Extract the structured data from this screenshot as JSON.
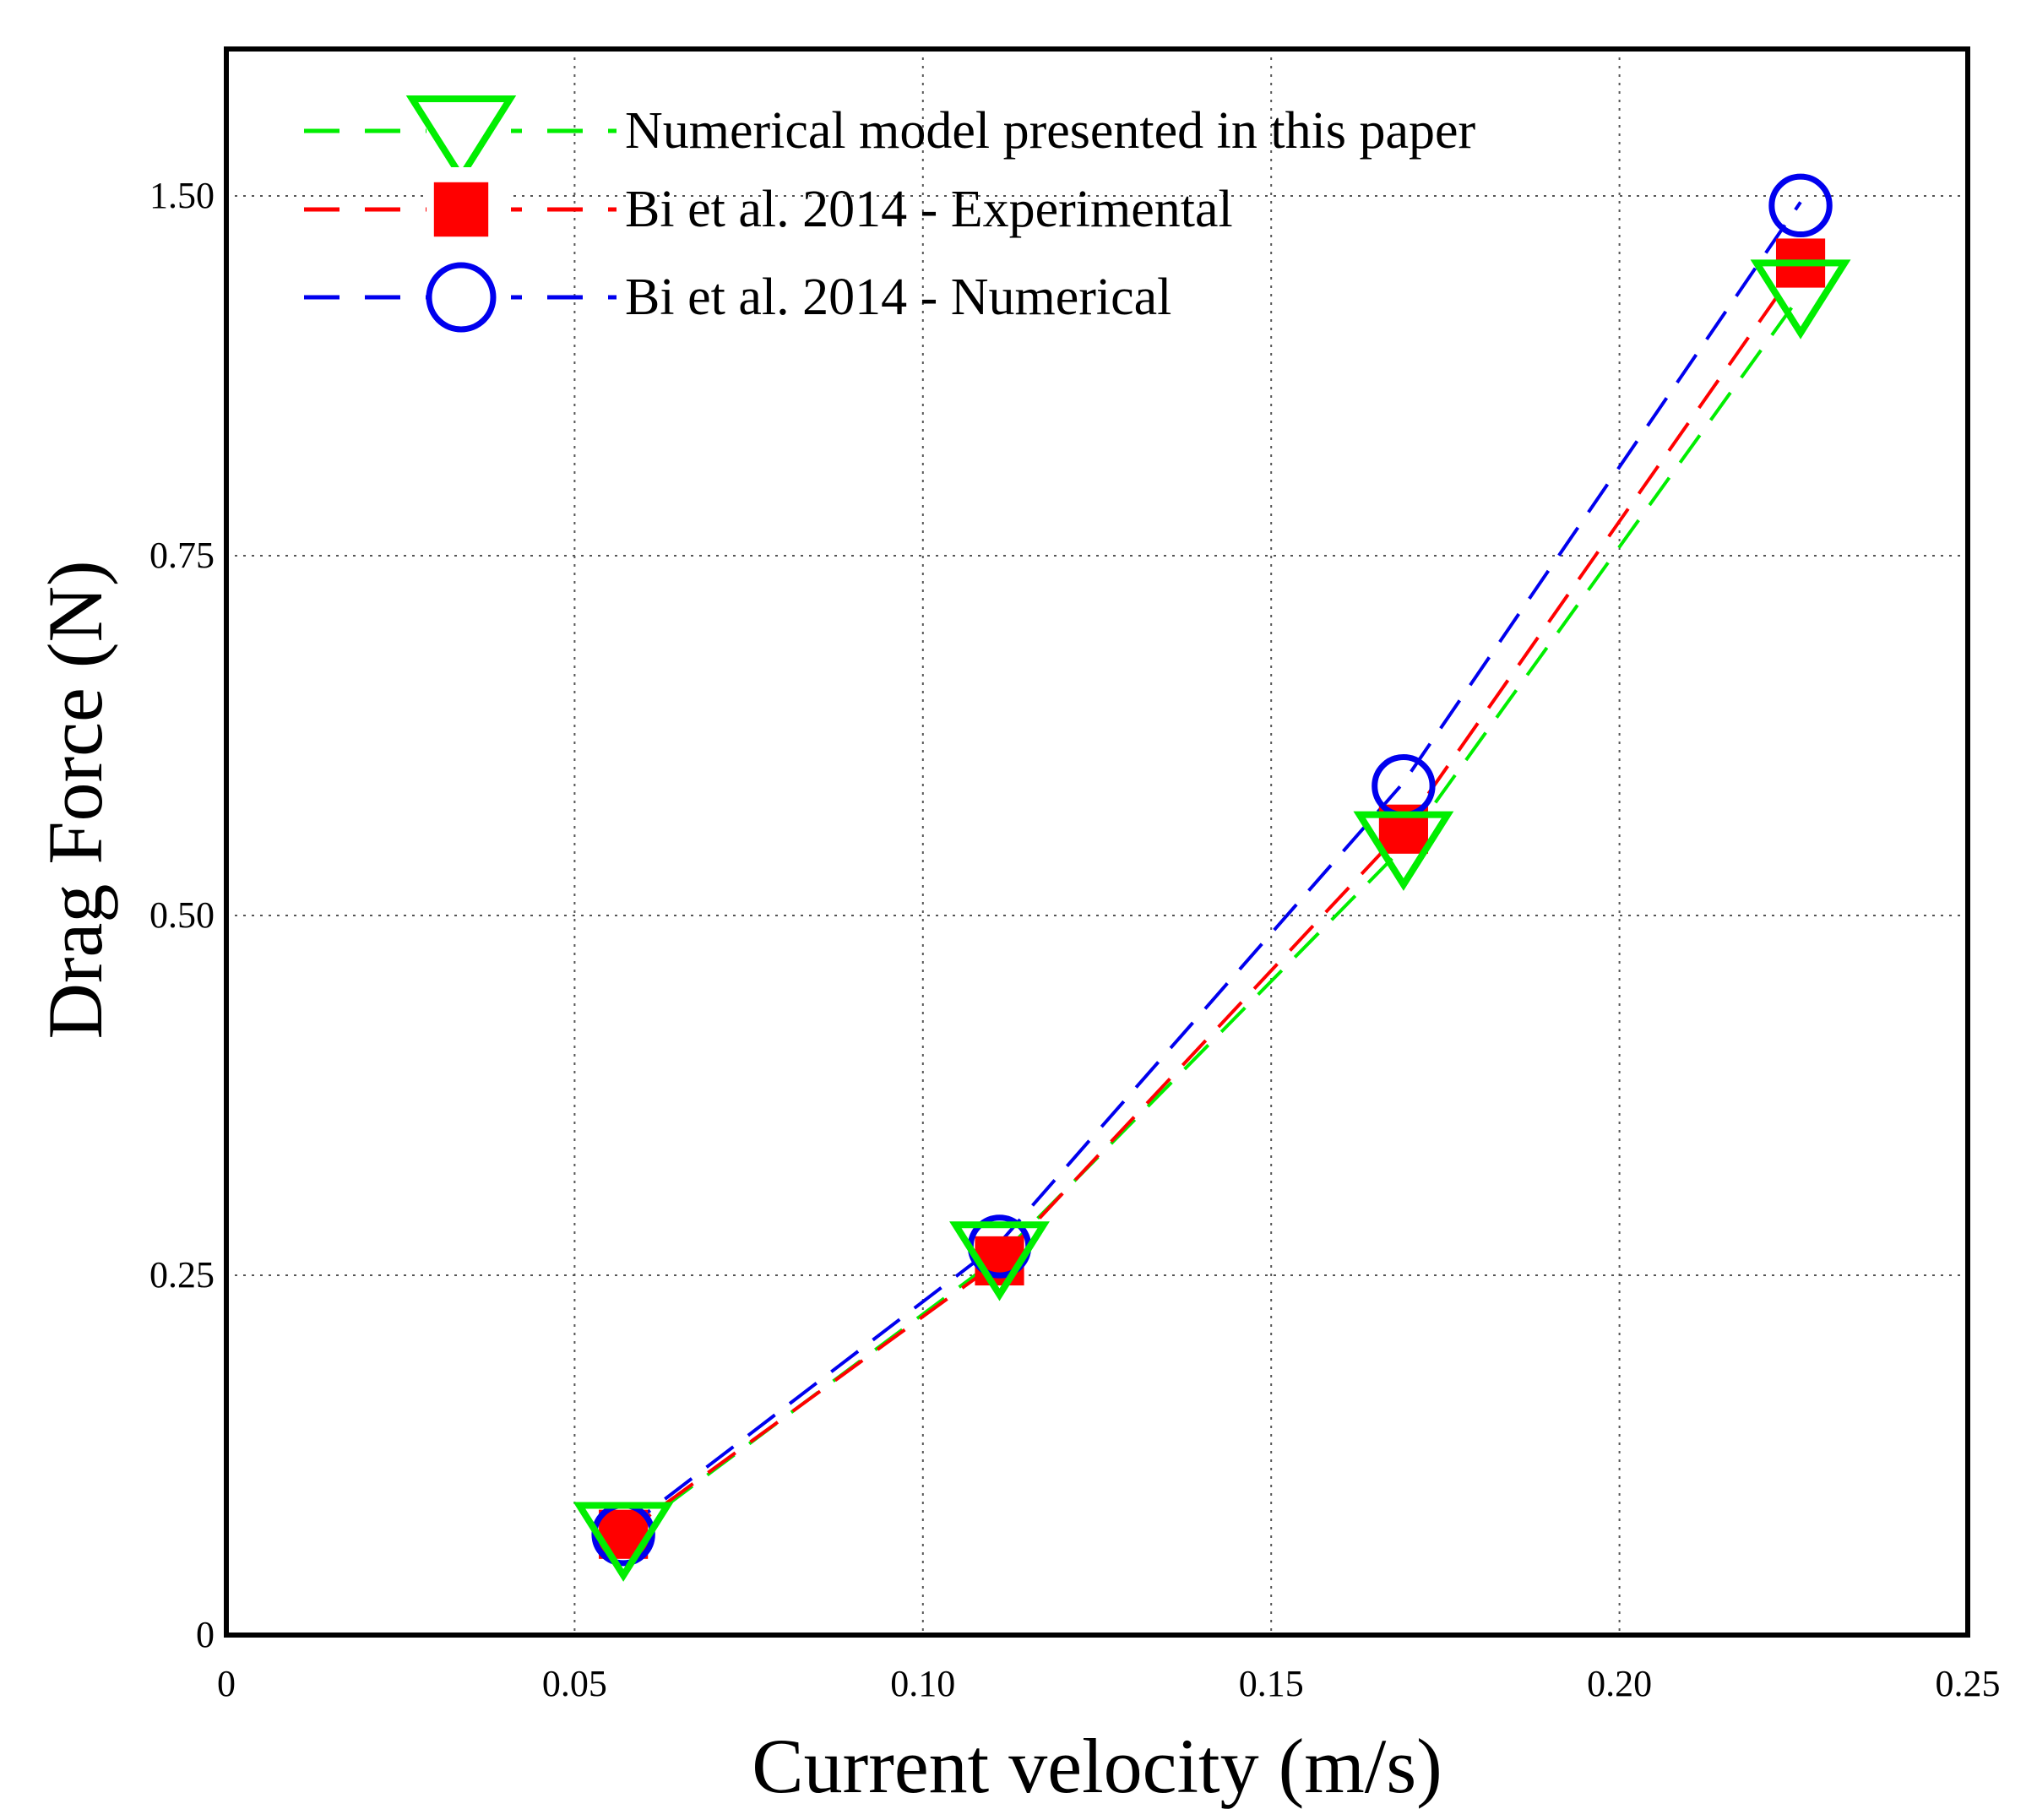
{
  "chart_data": {
    "type": "line",
    "title": "",
    "xlabel": "Current velocity (m/s)",
    "ylabel": "Drag Force (N)",
    "xlim": [
      0,
      0.25
    ],
    "ylim": [
      0,
      1.75
    ],
    "grid": true,
    "legend_position": "top-left",
    "x_ticks": [
      {
        "value": 0,
        "label": "0"
      },
      {
        "value": 0.05,
        "label": "0.05"
      },
      {
        "value": 0.1,
        "label": "0.10"
      },
      {
        "value": 0.15,
        "label": "0.15"
      },
      {
        "value": 0.2,
        "label": "0.20"
      },
      {
        "value": 0.25,
        "label": "0.25"
      }
    ],
    "y_ticks": [
      {
        "value": 0,
        "label": "0"
      },
      {
        "value": 0.25,
        "label": "0.25"
      },
      {
        "value": 0.5,
        "label": "0.50"
      },
      {
        "value": 0.75,
        "label": "0.75"
      },
      {
        "value": 1.5,
        "label": "1.50"
      }
    ],
    "y_tick_map": [
      [
        0,
        0
      ],
      [
        0.25,
        0.25
      ],
      [
        0.5,
        0.5
      ],
      [
        0.75,
        0.75
      ],
      [
        1.5,
        1.0
      ]
    ],
    "series": [
      {
        "id": "numerical-model",
        "name": "Numerical model presented in this paper",
        "color": "#00ee00",
        "marker": "triangle-down",
        "line": "dashed",
        "x": [
          0.057,
          0.111,
          0.169,
          0.226
        ],
        "y": [
          0.07,
          0.265,
          0.55,
          1.3
        ]
      },
      {
        "id": "bi-experimental",
        "name": "Bi et al. 2014 - Experimental",
        "color": "#ff0000",
        "marker": "square",
        "line": "dashed",
        "x": [
          0.057,
          0.111,
          0.169,
          0.226
        ],
        "y": [
          0.07,
          0.26,
          0.56,
          1.36
        ]
      },
      {
        "id": "bi-numerical",
        "name": "Bi et al. 2014 - Numerical",
        "color": "#0000ee",
        "marker": "circle",
        "line": "dashed",
        "x": [
          0.057,
          0.111,
          0.169,
          0.226
        ],
        "y": [
          0.07,
          0.27,
          0.59,
          1.48
        ]
      }
    ]
  }
}
